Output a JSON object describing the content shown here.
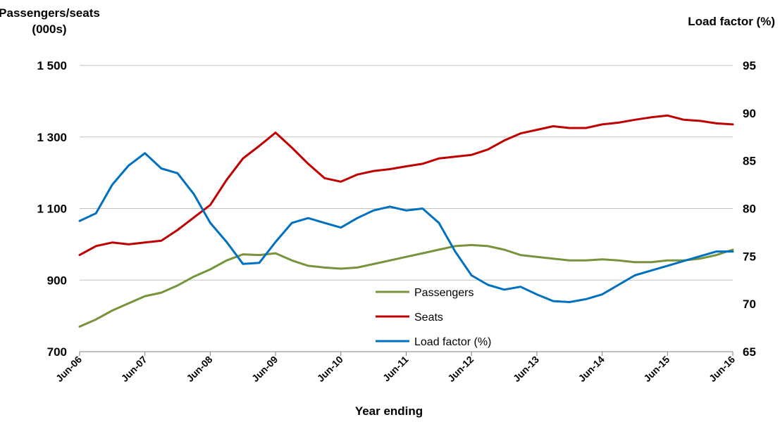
{
  "chart_data": {
    "type": "line",
    "title": "",
    "y_left_label_line1": "Passengers/seats",
    "y_left_label_line2": "(000s)",
    "y_right_label": "Load factor (%)",
    "xlabel": "Year ending",
    "y_left_lim": [
      700,
      1500
    ],
    "y_left_ticks": [
      "700",
      "900",
      "1 100",
      "1 300",
      "1 500"
    ],
    "y_left_tick_values": [
      700,
      900,
      1100,
      1300,
      1500
    ],
    "y_right_lim": [
      65,
      95
    ],
    "y_right_ticks": [
      "65",
      "70",
      "75",
      "80",
      "85",
      "90",
      "95"
    ],
    "y_right_tick_values": [
      65,
      70,
      75,
      80,
      85,
      90,
      95
    ],
    "x_ticks": [
      "Jun-06",
      "Jun-07",
      "Jun-08",
      "Jun-09",
      "Jun-10",
      "Jun-11",
      "Jun-12",
      "Jun-13",
      "Jun-14",
      "Jun-15",
      "Jun-16"
    ],
    "grid": true,
    "legend_position": "bottom-center",
    "x_unit": "years since Jun-06 (quarterly)",
    "series": [
      {
        "name": "Passengers",
        "axis": "left",
        "color": "#77933C",
        "x": [
          0,
          0.25,
          0.5,
          0.75,
          1,
          1.25,
          1.5,
          1.75,
          2,
          2.25,
          2.5,
          2.75,
          3,
          3.25,
          3.5,
          3.75,
          4,
          4.25,
          4.5,
          4.75,
          5,
          5.25,
          5.5,
          5.75,
          6,
          6.25,
          6.5,
          6.75,
          7,
          7.25,
          7.5,
          7.75,
          8,
          8.25,
          8.5,
          8.75,
          9,
          9.25,
          9.5,
          9.75,
          10
        ],
        "values": [
          770,
          790,
          815,
          835,
          855,
          865,
          885,
          910,
          930,
          955,
          972,
          970,
          975,
          955,
          940,
          935,
          932,
          935,
          945,
          955,
          965,
          975,
          985,
          995,
          998,
          995,
          985,
          970,
          965,
          960,
          955,
          955,
          958,
          955,
          950,
          950,
          955,
          955,
          960,
          970,
          985
        ]
      },
      {
        "name": "Seats",
        "axis": "left",
        "color": "#C00000",
        "x": [
          0,
          0.25,
          0.5,
          0.75,
          1,
          1.25,
          1.5,
          1.75,
          2,
          2.25,
          2.5,
          2.75,
          3,
          3.25,
          3.5,
          3.75,
          4,
          4.25,
          4.5,
          4.75,
          5,
          5.25,
          5.5,
          5.75,
          6,
          6.25,
          6.5,
          6.75,
          7,
          7.25,
          7.5,
          7.75,
          8,
          8.25,
          8.5,
          8.75,
          9,
          9.25,
          9.5,
          9.75,
          10
        ],
        "values": [
          970,
          995,
          1005,
          1000,
          1005,
          1010,
          1040,
          1075,
          1110,
          1180,
          1240,
          1275,
          1312,
          1270,
          1225,
          1185,
          1175,
          1195,
          1205,
          1210,
          1218,
          1225,
          1240,
          1245,
          1250,
          1265,
          1290,
          1310,
          1320,
          1330,
          1325,
          1325,
          1335,
          1340,
          1348,
          1355,
          1360,
          1348,
          1345,
          1338,
          1335
        ]
      },
      {
        "name": "Load factor (%)",
        "axis": "right",
        "color": "#0070C0",
        "x": [
          0,
          0.25,
          0.5,
          0.75,
          1,
          1.25,
          1.5,
          1.75,
          2,
          2.25,
          2.5,
          2.75,
          3,
          3.25,
          3.5,
          3.75,
          4,
          4.25,
          4.5,
          4.75,
          5,
          5.25,
          5.5,
          5.75,
          6,
          6.25,
          6.5,
          6.75,
          7,
          7.25,
          7.5,
          7.75,
          8,
          8.25,
          8.5,
          8.75,
          9,
          9.25,
          9.5,
          9.75,
          10
        ],
        "values": [
          78.7,
          79.5,
          82.5,
          84.5,
          85.8,
          84.2,
          83.7,
          81.5,
          78.5,
          76.5,
          74.2,
          74.3,
          76.5,
          78.5,
          79.0,
          78.5,
          78.0,
          79.0,
          79.8,
          80.2,
          79.8,
          80.0,
          78.5,
          75.5,
          73.0,
          72.0,
          71.5,
          71.8,
          71.0,
          70.3,
          70.2,
          70.5,
          71.0,
          72.0,
          73.0,
          73.5,
          74.0,
          74.5,
          75.0,
          75.5,
          75.5
        ]
      }
    ]
  }
}
